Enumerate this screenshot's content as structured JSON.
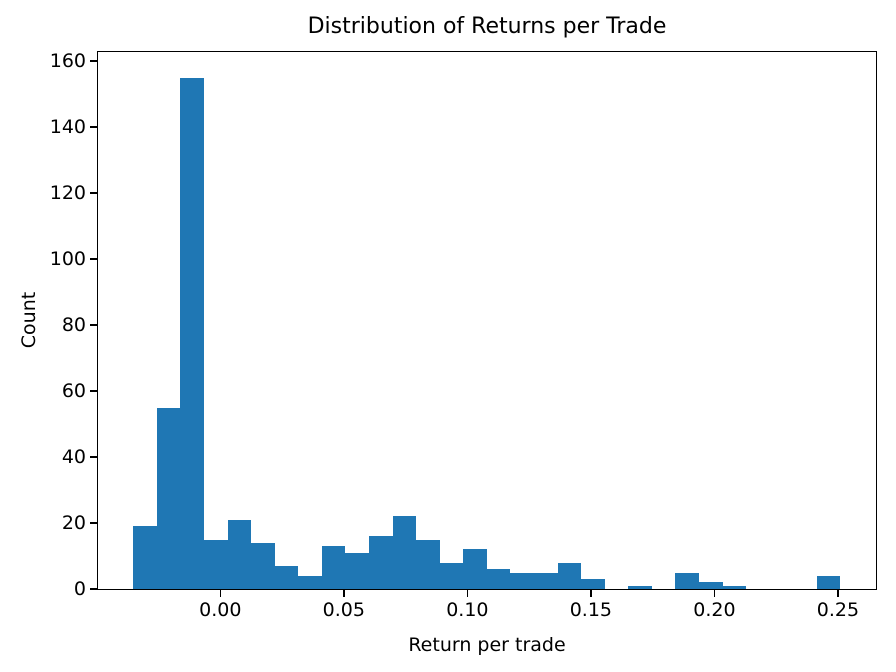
{
  "chart_data": {
    "type": "bar",
    "chart_kind": "histogram",
    "title": "Distribution of Returns per Trade",
    "xlabel": "Return per trade",
    "ylabel": "Count",
    "bar_color": "#1f77b4",
    "background_color": "#ffffff",
    "axis_color": "#000000",
    "grid": false,
    "legend": false,
    "bin_start": -0.0352,
    "bin_width": 0.00954,
    "bin_counts": [
      19,
      55,
      155,
      15,
      21,
      14,
      7,
      4,
      13,
      11,
      16,
      22,
      15,
      8,
      12,
      6,
      5,
      5,
      8,
      3,
      0,
      1,
      0,
      5,
      2,
      1,
      0,
      0,
      0,
      4
    ],
    "xlim": [
      -0.0495,
      0.2654
    ],
    "ylim": [
      0,
      162.75
    ],
    "x_ticks": [
      {
        "value": 0.0,
        "label": "0.00"
      },
      {
        "value": 0.05,
        "label": "0.05"
      },
      {
        "value": 0.1,
        "label": "0.10"
      },
      {
        "value": 0.15,
        "label": "0.15"
      },
      {
        "value": 0.2,
        "label": "0.20"
      },
      {
        "value": 0.25,
        "label": "0.25"
      }
    ],
    "y_ticks": [
      {
        "value": 0,
        "label": "0"
      },
      {
        "value": 20,
        "label": "20"
      },
      {
        "value": 40,
        "label": "40"
      },
      {
        "value": 60,
        "label": "60"
      },
      {
        "value": 80,
        "label": "80"
      },
      {
        "value": 100,
        "label": "100"
      },
      {
        "value": 120,
        "label": "120"
      },
      {
        "value": 140,
        "label": "140"
      },
      {
        "value": 160,
        "label": "160"
      }
    ]
  }
}
